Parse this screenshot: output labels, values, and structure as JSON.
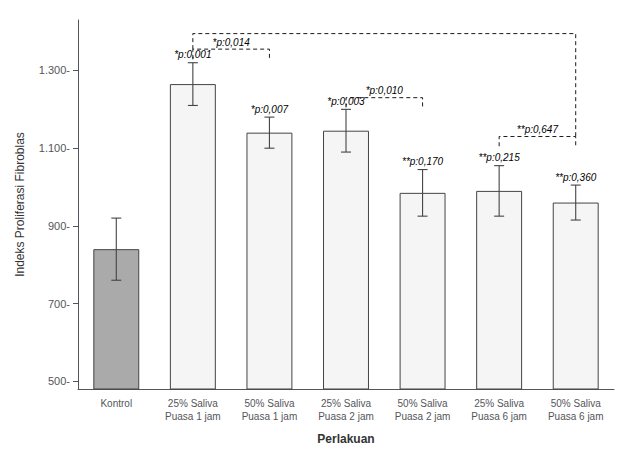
{
  "chart_data": {
    "type": "bar",
    "categories": [
      "Kontrol",
      "25% Saliva\nPuasa 1 jam",
      "50% Saliva\nPuasa 1 jam",
      "25% Saliva\nPuasa 2 jam",
      "50% Saliva\nPuasa 2 jam",
      "25% Saliva\nPuasa 6 jam",
      "50% Saliva\nPuasa 6 jam"
    ],
    "values": [
      840,
      1265,
      1140,
      1145,
      985,
      990,
      960
    ],
    "errors": [
      80,
      55,
      40,
      55,
      60,
      65,
      45
    ],
    "colors": [
      "#aaaaaa",
      "#f5f5f5",
      "#f5f5f5",
      "#f5f5f5",
      "#f5f5f5",
      "#f5f5f5",
      "#f5f5f5"
    ],
    "xlabel": "Perlakuan",
    "ylabel": "Indeks Proliferasi Fibroblas",
    "ylim": [
      480,
      1430
    ],
    "yticks": [
      {
        "value": 500,
        "label": "500-"
      },
      {
        "value": 700,
        "label": "700-"
      },
      {
        "value": 900,
        "label": "900-"
      },
      {
        "value": 1100,
        "label": "1.100-"
      },
      {
        "value": 1300,
        "label": "1.300-"
      }
    ],
    "grid": false,
    "annotations": [
      {
        "category": "25% Saliva\nPuasa 1 jam",
        "text": "*p:0,001"
      },
      {
        "category": "50% Saliva\nPuasa 1 jam",
        "text": "*p:0,007"
      },
      {
        "category": "25% Saliva\nPuasa 2 jam",
        "text": "*p:0,003"
      },
      {
        "category": "50% Saliva\nPuasa 2 jam",
        "text": "**p:0,170"
      },
      {
        "category": "25% Saliva\nPuasa 6 jam",
        "text": "**p:0,215"
      },
      {
        "category": "50% Saliva\nPuasa 6 jam",
        "text": "**p:0,360"
      }
    ],
    "brackets": [
      {
        "text": "*p:0,014",
        "from": "25% Saliva\nPuasa 1 jam",
        "to": "50% Saliva\nPuasa 1 jam",
        "y": 1355,
        "from_y": 1330,
        "to_y": 1330
      },
      {
        "text": "*p:0,010",
        "from": "25% Saliva\nPuasa 2 jam",
        "to": "50% Saliva\nPuasa 2 jam",
        "y": 1230,
        "from_y": 1205,
        "to_y": 1205
      },
      {
        "text": "**p:0,647",
        "from": "25% Saliva\nPuasa 6 jam",
        "to": "50% Saliva\nPuasa 6 jam",
        "y": 1130,
        "from_y": 1105,
        "to_y": 1105
      },
      {
        "from": "25% Saliva\nPuasa 1 jam",
        "to": "50% Saliva\nPuasa 6 jam",
        "y": 1395,
        "from_y": 1355,
        "to_y": 1130
      }
    ]
  }
}
